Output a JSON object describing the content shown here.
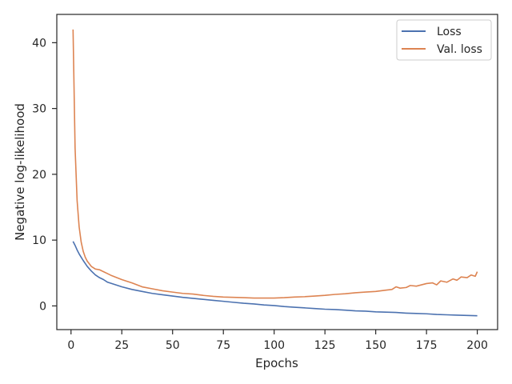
{
  "chart_data": {
    "type": "line",
    "xlabel": "Epochs",
    "ylabel": "Negative log-likelihood",
    "xlim": [
      -7,
      210
    ],
    "ylim": [
      -3.6,
      44.3
    ],
    "xticks": [
      0,
      25,
      50,
      75,
      100,
      125,
      150,
      175,
      200
    ],
    "yticks": [
      0,
      10,
      20,
      30,
      40
    ],
    "grid": false,
    "legend_position": "top-right",
    "series": [
      {
        "name": "Loss",
        "color": "#4c72b0",
        "x": [
          1,
          2,
          3,
          4,
          5,
          6,
          8,
          10,
          12,
          14,
          16,
          18,
          20,
          25,
          30,
          35,
          40,
          45,
          50,
          55,
          60,
          65,
          70,
          75,
          80,
          85,
          90,
          95,
          100,
          105,
          110,
          115,
          120,
          125,
          130,
          135,
          140,
          145,
          150,
          155,
          160,
          165,
          170,
          175,
          180,
          185,
          190,
          195,
          200
        ],
        "values": [
          9.8,
          9.2,
          8.5,
          7.9,
          7.4,
          6.9,
          6.0,
          5.3,
          4.7,
          4.3,
          4.0,
          3.6,
          3.4,
          2.9,
          2.5,
          2.2,
          1.9,
          1.7,
          1.5,
          1.3,
          1.15,
          1.0,
          0.85,
          0.7,
          0.55,
          0.4,
          0.3,
          0.15,
          0.05,
          -0.1,
          -0.2,
          -0.3,
          -0.4,
          -0.5,
          -0.55,
          -0.65,
          -0.75,
          -0.8,
          -0.9,
          -0.95,
          -1.0,
          -1.1,
          -1.15,
          -1.2,
          -1.3,
          -1.35,
          -1.4,
          -1.45,
          -1.5
        ]
      },
      {
        "name": "Val. loss",
        "color": "#dd8452",
        "x": [
          1,
          2,
          3,
          4,
          5,
          6,
          7,
          8,
          9,
          10,
          12,
          14,
          16,
          18,
          20,
          25,
          30,
          35,
          40,
          45,
          50,
          55,
          60,
          65,
          70,
          75,
          80,
          85,
          90,
          95,
          100,
          105,
          110,
          115,
          120,
          125,
          130,
          135,
          140,
          145,
          150,
          155,
          158,
          160,
          162,
          165,
          167,
          170,
          175,
          178,
          180,
          182,
          185,
          188,
          190,
          192,
          195,
          197,
          199,
          200
        ],
        "values": [
          42,
          24,
          16,
          12,
          9.7,
          8.3,
          7.4,
          6.8,
          6.4,
          6.0,
          5.6,
          5.5,
          5.2,
          4.9,
          4.6,
          4.0,
          3.5,
          2.9,
          2.6,
          2.3,
          2.1,
          1.9,
          1.8,
          1.6,
          1.45,
          1.35,
          1.3,
          1.25,
          1.2,
          1.2,
          1.2,
          1.25,
          1.35,
          1.4,
          1.5,
          1.6,
          1.75,
          1.85,
          2.0,
          2.1,
          2.2,
          2.4,
          2.5,
          2.9,
          2.7,
          2.8,
          3.1,
          3.0,
          3.4,
          3.5,
          3.2,
          3.8,
          3.6,
          4.1,
          3.9,
          4.4,
          4.3,
          4.7,
          4.5,
          5.2
        ]
      }
    ]
  }
}
